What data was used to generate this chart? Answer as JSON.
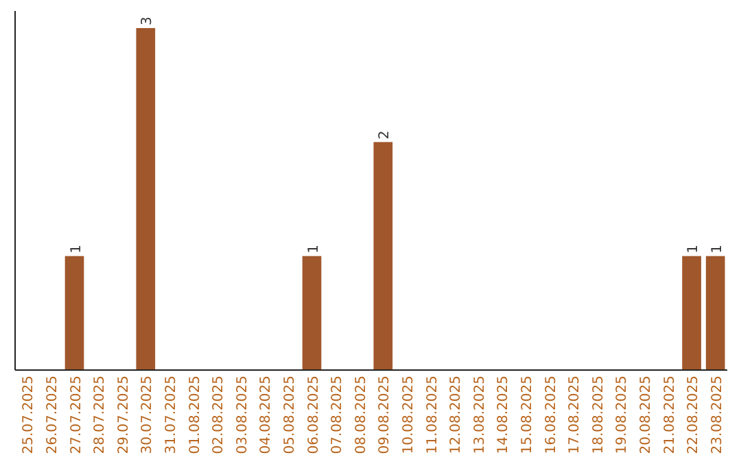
{
  "chart_data": {
    "type": "bar",
    "categories": [
      "25.07.2025",
      "26.07.2025",
      "27.07.2025",
      "28.07.2025",
      "29.07.2025",
      "30.07.2025",
      "31.07.2025",
      "01.08.2025",
      "02.08.2025",
      "03.08.2025",
      "04.08.2025",
      "05.08.2025",
      "06.08.2025",
      "07.08.2025",
      "08.08.2025",
      "09.08.2025",
      "10.08.2025",
      "11.08.2025",
      "12.08.2025",
      "13.08.2025",
      "14.08.2025",
      "15.08.2025",
      "16.08.2025",
      "17.08.2025",
      "18.08.2025",
      "19.08.2025",
      "20.08.2025",
      "21.08.2025",
      "22.08.2025",
      "23.08.2025"
    ],
    "values": [
      0,
      0,
      1,
      0,
      0,
      3,
      0,
      0,
      0,
      0,
      0,
      0,
      1,
      0,
      0,
      2,
      0,
      0,
      0,
      0,
      0,
      0,
      0,
      0,
      0,
      0,
      0,
      0,
      1,
      1
    ],
    "value_labels": [
      null,
      null,
      "1",
      null,
      null,
      "3",
      null,
      null,
      null,
      null,
      null,
      null,
      "1",
      null,
      null,
      "2",
      null,
      null,
      null,
      null,
      null,
      null,
      null,
      null,
      null,
      null,
      null,
      null,
      "1",
      "1"
    ],
    "color": "#a0572b",
    "tick_labels": "x"
  }
}
